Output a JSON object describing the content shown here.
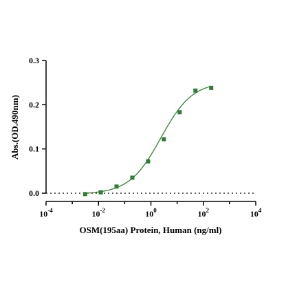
{
  "chart_data": {
    "type": "scatter",
    "xlabel": "OSM(195aa) Protein, Human (ng/ml)",
    "ylabel": "Abs.(OD.490nm)",
    "x_scale": "log",
    "xlim": [
      0.0001,
      10000
    ],
    "ylim": [
      0,
      0.3
    ],
    "x_ticks": [
      {
        "base": "10",
        "exp": "-4"
      },
      {
        "base": "10",
        "exp": "-2"
      },
      {
        "base": "10",
        "exp": "0"
      },
      {
        "base": "10",
        "exp": "2"
      },
      {
        "base": "10",
        "exp": "4"
      }
    ],
    "y_ticks": [
      "0.0",
      "0.1",
      "0.2",
      "0.3"
    ],
    "baseline": 0,
    "color": "#2e7d32",
    "curve_color": "#3a8a3a",
    "series": [
      {
        "x": [
          0.0031,
          0.0122,
          0.0488,
          0.1953,
          0.7813,
          3.125,
          12.5,
          50,
          200
        ],
        "y": [
          -0.002,
          0.002,
          0.015,
          0.035,
          0.072,
          0.122,
          0.183,
          0.232,
          0.238
        ]
      }
    ],
    "grid": false,
    "legend": "none"
  }
}
